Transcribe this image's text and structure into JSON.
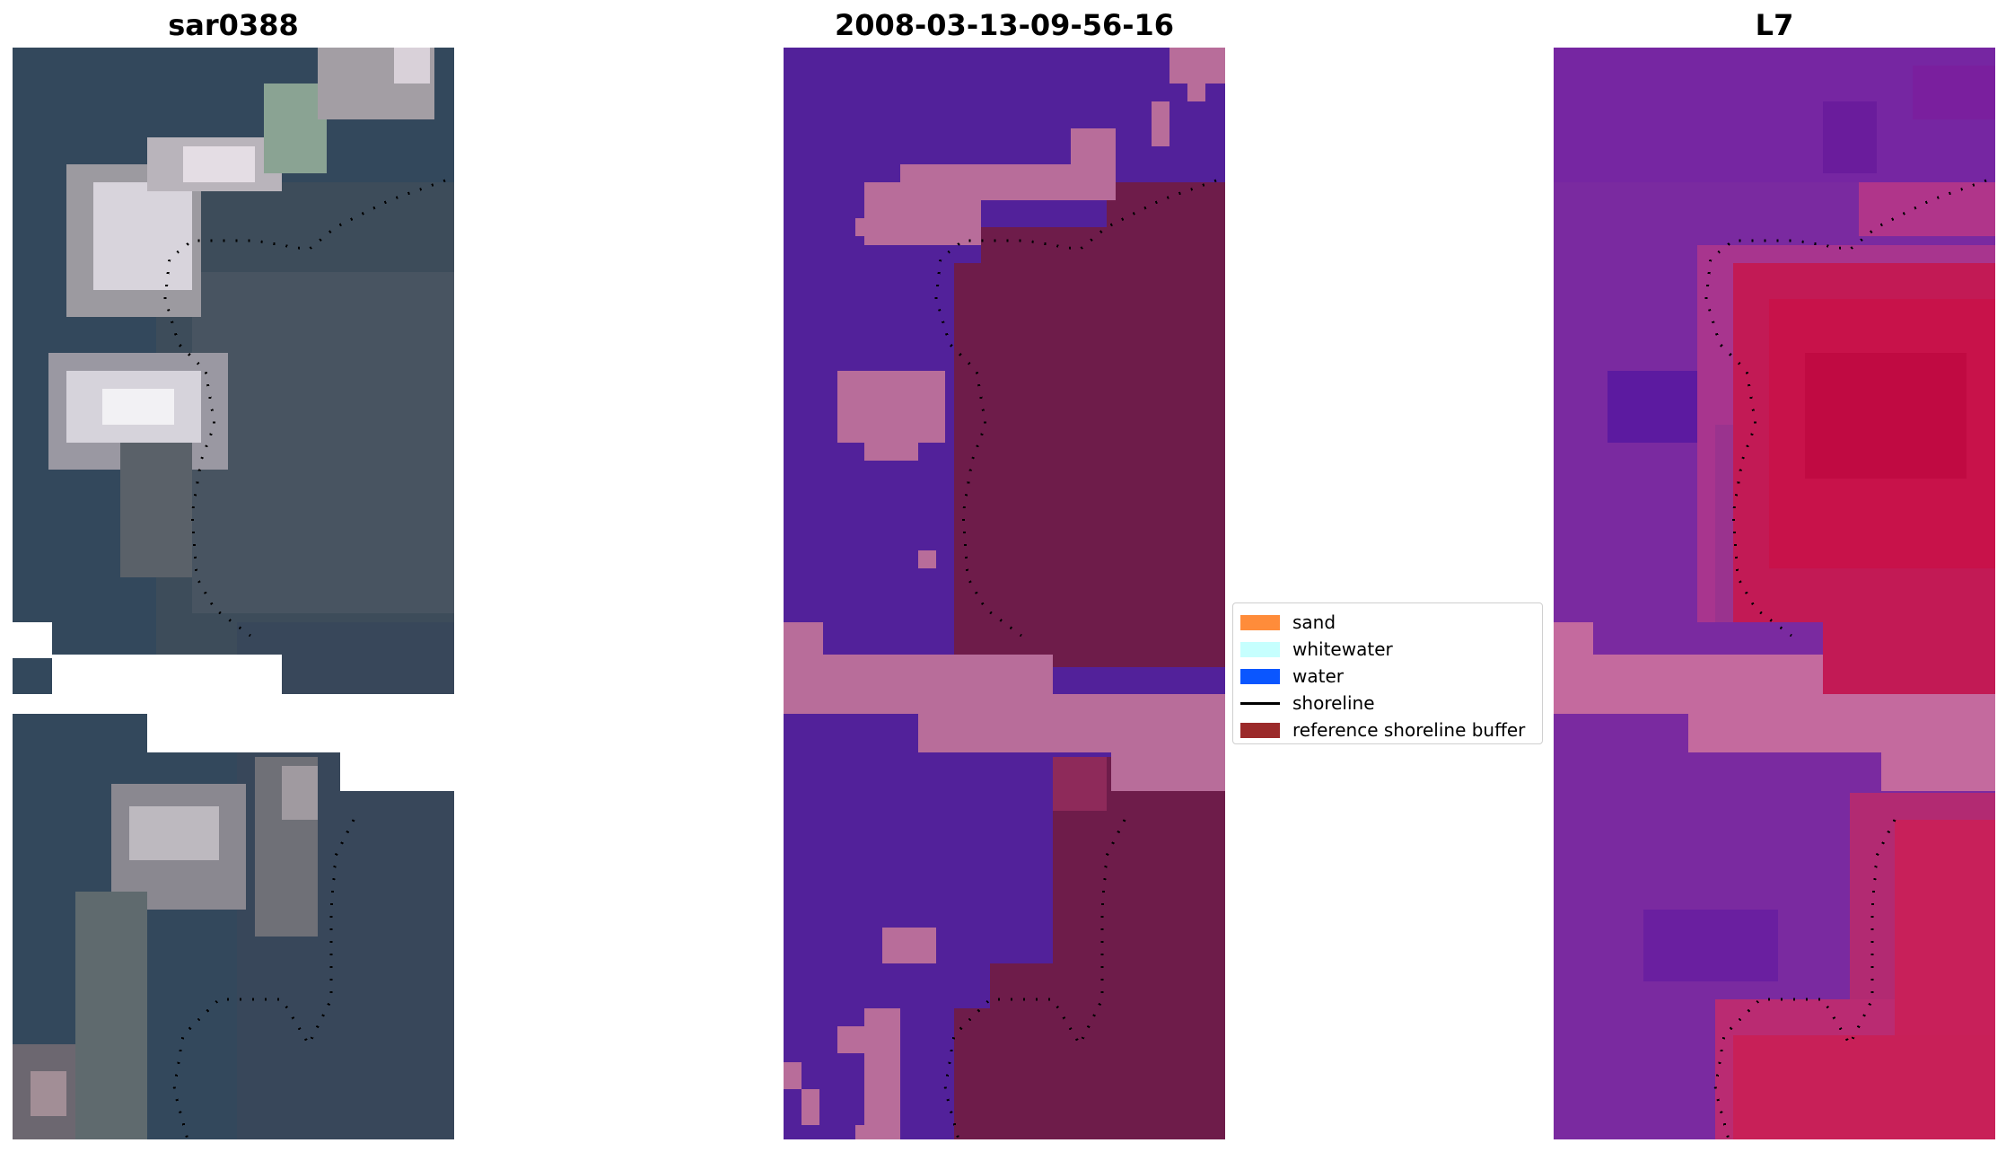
{
  "panels": [
    {
      "title": "sar0388"
    },
    {
      "title": "2008-03-13-09-56-16"
    },
    {
      "title": "L7"
    }
  ],
  "legend": {
    "items": [
      {
        "label": "sand",
        "color": "#ff8c3a"
      },
      {
        "label": "whitewater",
        "color": "#c6fffe"
      },
      {
        "label": "water",
        "color": "#0a56ff"
      },
      {
        "label": "shoreline",
        "color": "#000000"
      },
      {
        "label": "reference shoreline buffer",
        "color": "#9b2a2a"
      }
    ]
  },
  "colors": {
    "rgb_water": "#2f4a5e",
    "classified_water": "#52219a",
    "classified_buffer": "#6e1c4a",
    "classified_cloud": "#b86d9a",
    "index_purple": "#7a2aa0",
    "index_red": "#c8124a"
  }
}
